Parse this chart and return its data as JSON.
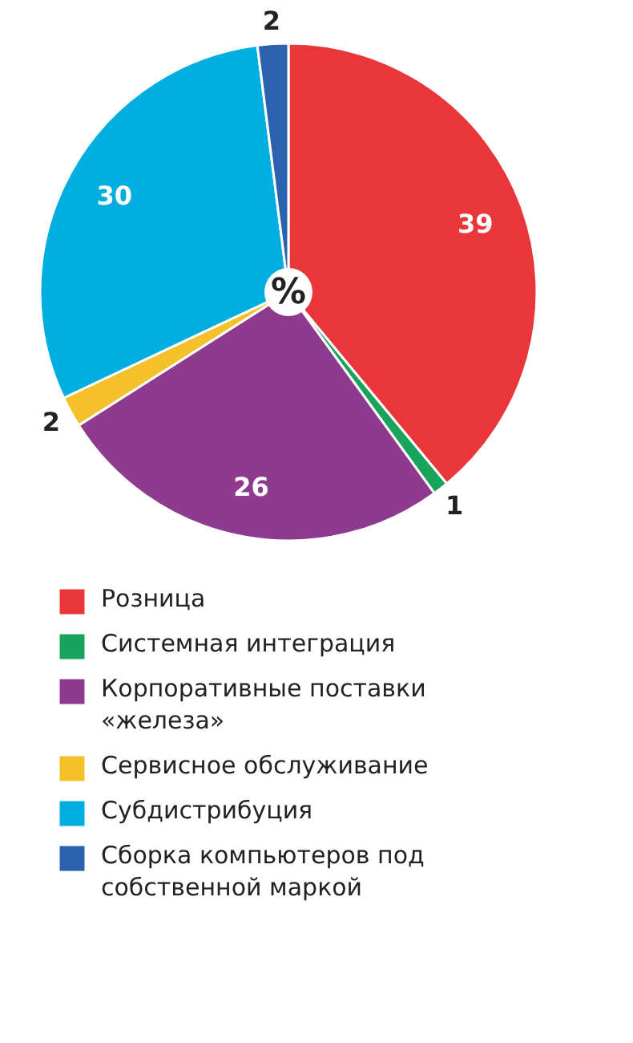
{
  "chart_data": {
    "type": "pie",
    "categories": [
      "Розница",
      "Системная интеграция",
      "Корпоративные поставки «железа»",
      "Сервисное обслуживание",
      "Субдистрибуция",
      "Сборка компьютеров под собственной маркой"
    ],
    "values": [
      39,
      1,
      26,
      2,
      30,
      2
    ],
    "colors": [
      "#e8363a",
      "#1aa35a",
      "#8e3a8e",
      "#f5c12b",
      "#00aee0",
      "#2a62ad"
    ],
    "data_labels": true,
    "legend": "bottom",
    "annotations": [
      "%"
    ]
  }
}
